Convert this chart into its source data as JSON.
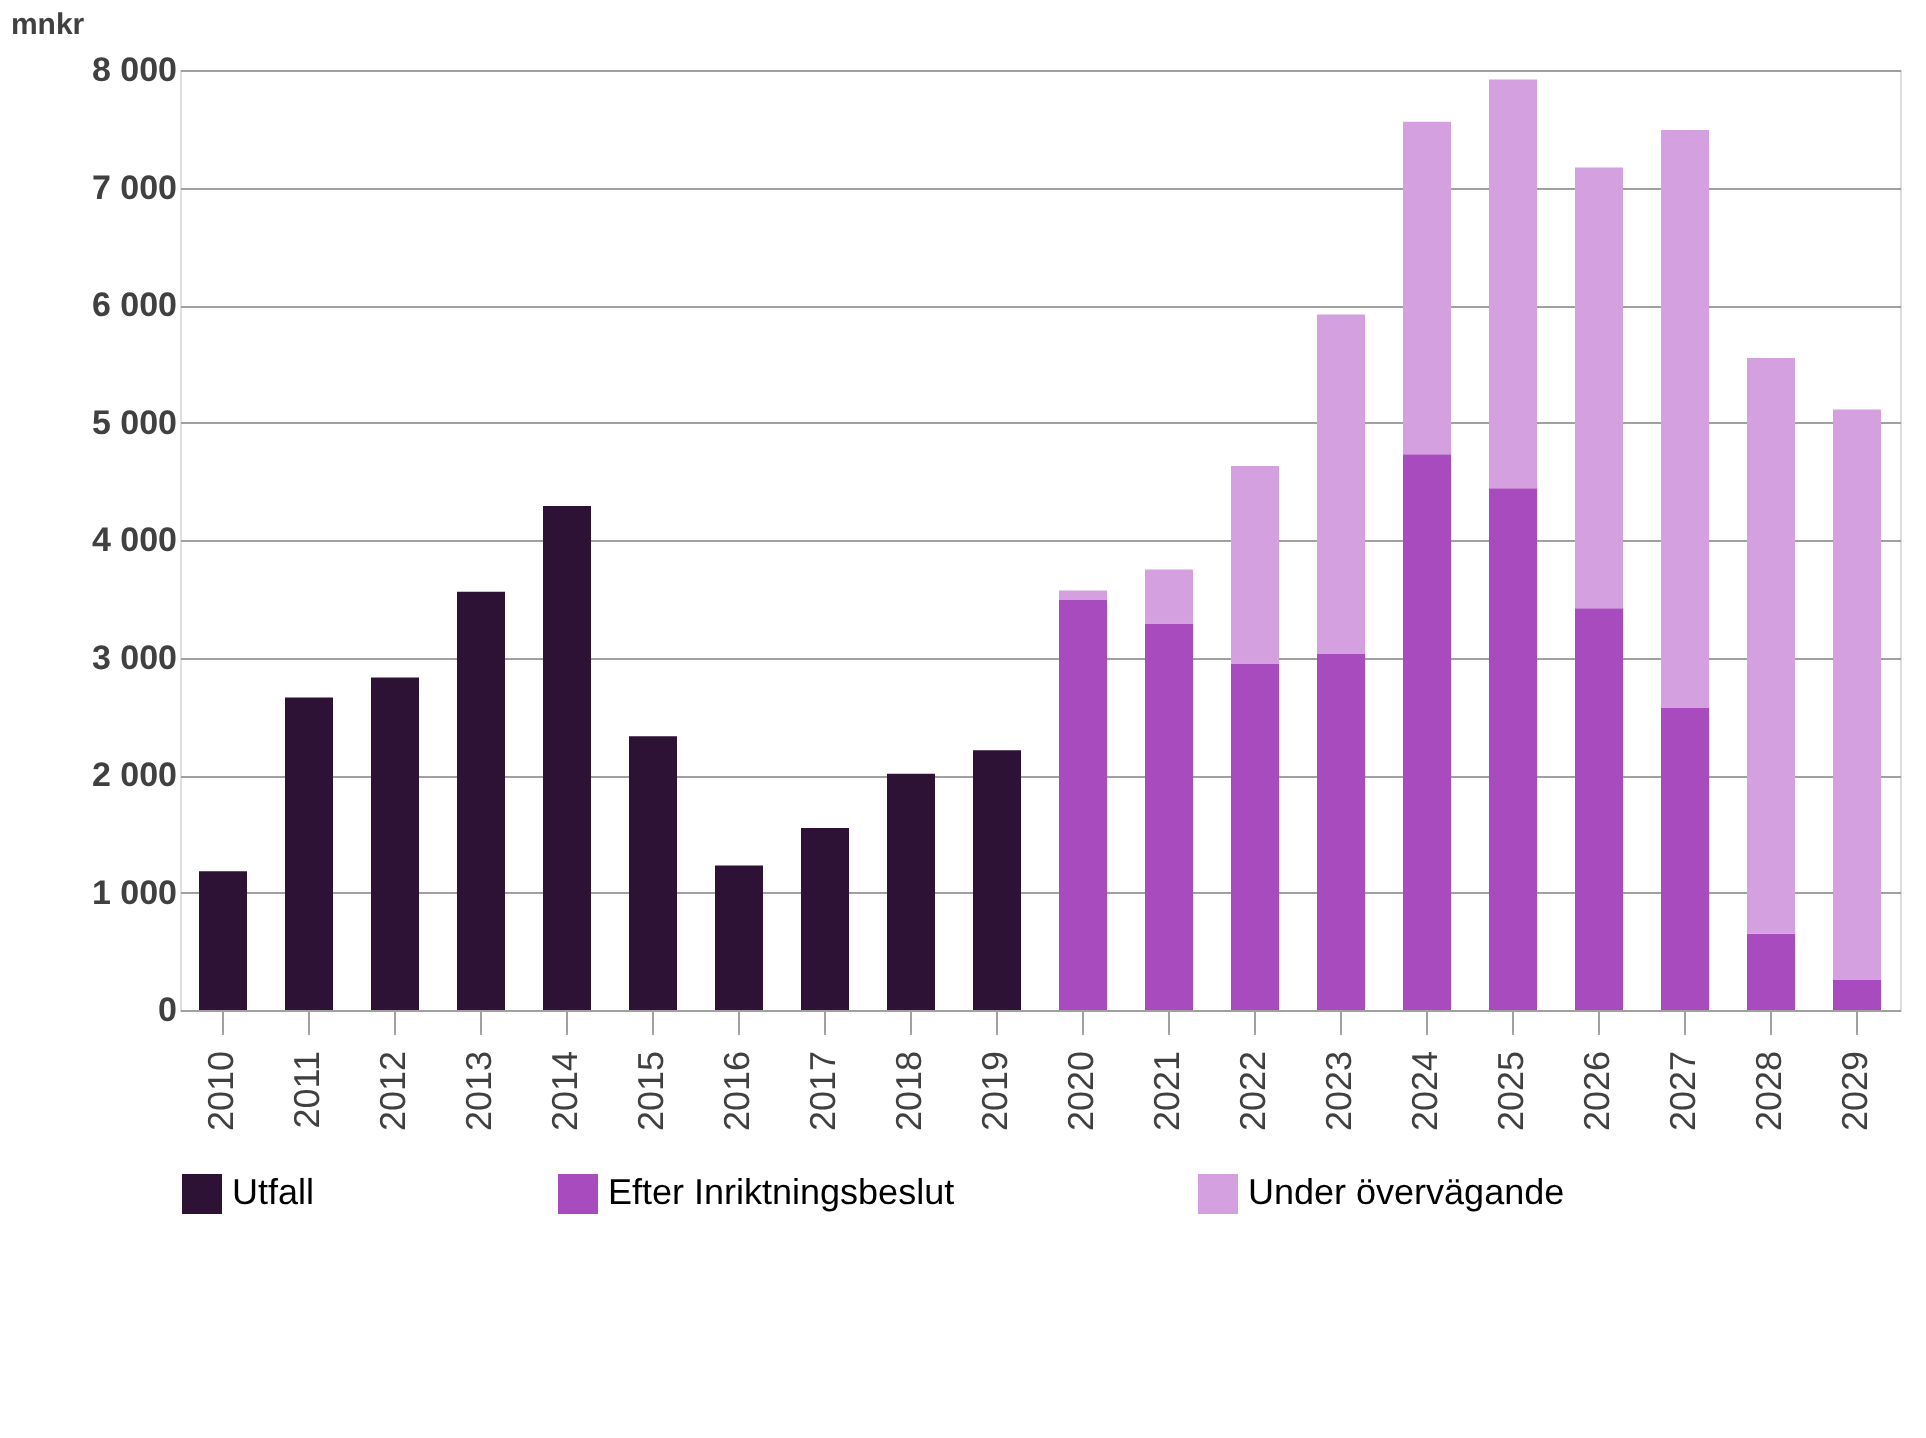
{
  "chart_data": {
    "type": "bar",
    "stacked": true,
    "ylabel": "mnkr",
    "categories": [
      "2010",
      "2011",
      "2012",
      "2013",
      "2014",
      "2015",
      "2016",
      "2017",
      "2018",
      "2019",
      "2020",
      "2021",
      "2022",
      "2023",
      "2024",
      "2025",
      "2026",
      "2027",
      "2028",
      "2029"
    ],
    "series": [
      {
        "name": "Utfall",
        "color": "#2e1236",
        "values": [
          1180,
          2660,
          2830,
          3560,
          4290,
          2330,
          1230,
          1550,
          2010,
          2210,
          null,
          null,
          null,
          null,
          null,
          null,
          null,
          null,
          null,
          null
        ]
      },
      {
        "name": "Efter Inriktningsbeslut",
        "color": "#a84bbf",
        "values": [
          null,
          null,
          null,
          null,
          null,
          null,
          null,
          null,
          null,
          null,
          3490,
          3290,
          2950,
          3030,
          4730,
          4440,
          3420,
          2570,
          650,
          260
        ]
      },
      {
        "name": "Under övervägande",
        "color": "#d4a0df",
        "values": [
          null,
          null,
          null,
          null,
          null,
          null,
          null,
          null,
          null,
          null,
          80,
          460,
          1680,
          2890,
          2830,
          3480,
          3750,
          4920,
          4900,
          4850
        ]
      }
    ],
    "ylim": [
      0,
      8000
    ],
    "yticks": [
      0,
      {
        "value": 1000,
        "label": "1 000"
      },
      {
        "value": 2000,
        "label": "2 000"
      },
      {
        "value": 3000,
        "label": "3 000"
      },
      {
        "value": 4000,
        "label": "4 000"
      },
      {
        "value": 5000,
        "label": "5 000"
      },
      {
        "value": 6000,
        "label": "6 000"
      },
      {
        "value": 7000,
        "label": "7 000"
      },
      {
        "value": 8000,
        "label": "8 000"
      }
    ],
    "grid": "y",
    "legend": "bottom"
  }
}
